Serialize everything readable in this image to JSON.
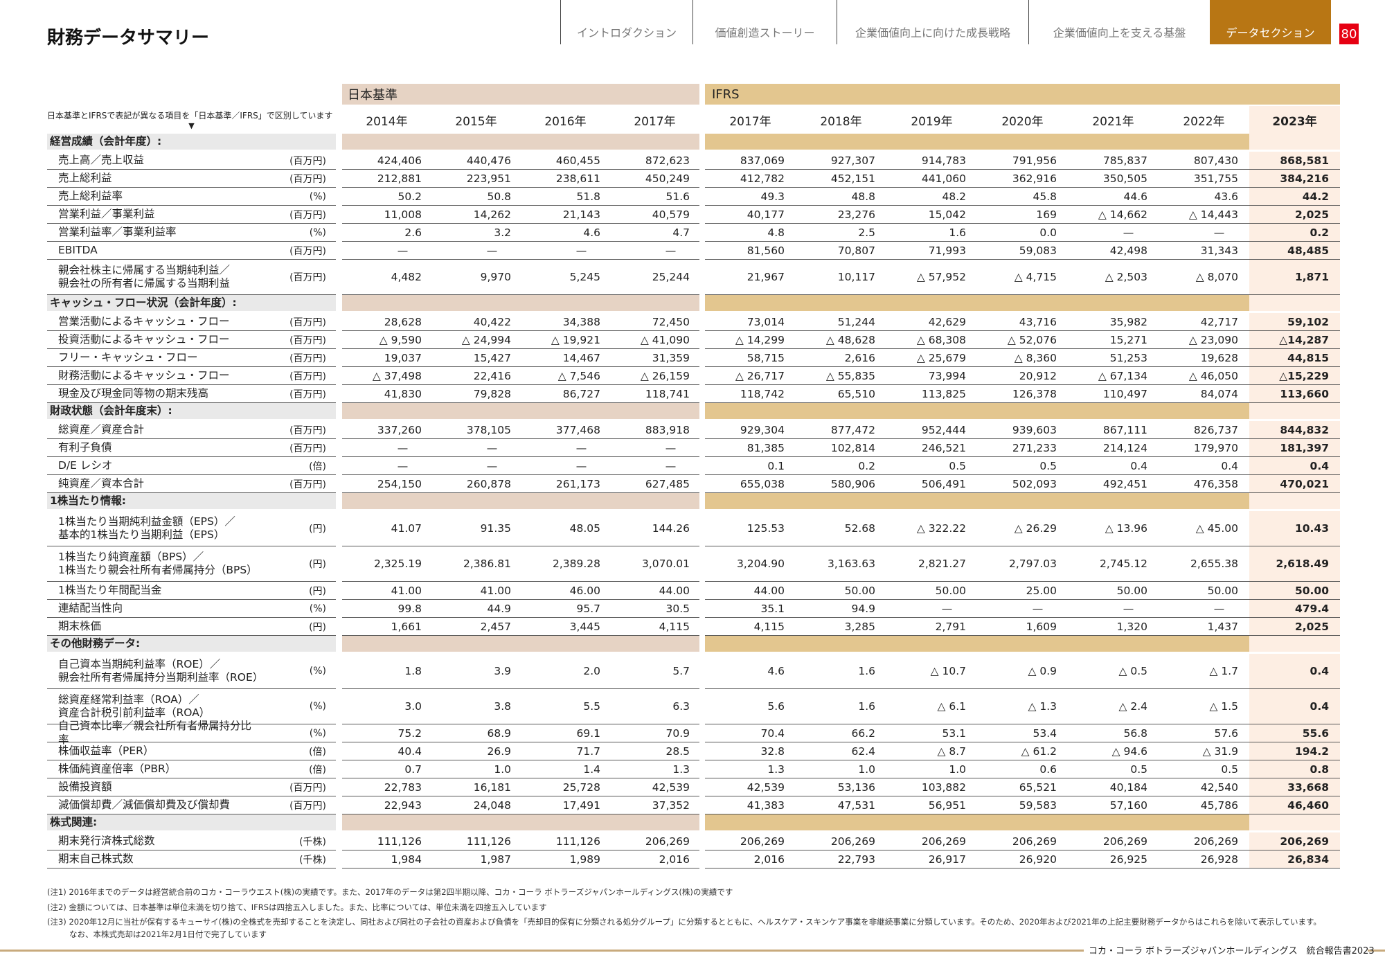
{
  "title": "財務データサマリー",
  "nav": [
    {
      "label": "イントロダクション",
      "active": false
    },
    {
      "label": "価値創造ストーリー",
      "active": false
    },
    {
      "label": "企業価値向上に向けた成長戦略",
      "active": false
    },
    {
      "label": "企業価値向上を支える基盤",
      "active": false
    },
    {
      "label": "データセクション",
      "active": true
    }
  ],
  "page_number": "80",
  "colors": {
    "accent": "#b87614",
    "jp_band": "#e6d3c4",
    "ifrs_band": "#e3c68f",
    "highlight": "#fdeee3",
    "page_badge": "#e60012"
  },
  "table": {
    "note": "日本基準とIFRSで表記が異なる項目を「日本基準／IFRS」で区別しています",
    "note_arrow": "▼",
    "jp_header": "日本基準",
    "ifrs_header": "IFRS",
    "jp_years": [
      "2014年",
      "2015年",
      "2016年",
      "2017年"
    ],
    "ifrs_years": [
      "2017年",
      "2018年",
      "2019年",
      "2020年",
      "2021年",
      "2022年",
      "2023年"
    ],
    "sections": [
      {
        "title": "経営成績（会計年度）:",
        "rows": [
          {
            "label": "売上高／売上収益",
            "unit": "(百万円)",
            "jp": [
              "424,406",
              "440,476",
              "460,455",
              "872,623"
            ],
            "ifrs": [
              "837,069",
              "927,307",
              "914,783",
              "791,956",
              "785,837",
              "807,430",
              "868,581"
            ]
          },
          {
            "label": "売上総利益",
            "unit": "(百万円)",
            "jp": [
              "212,881",
              "223,951",
              "238,611",
              "450,249"
            ],
            "ifrs": [
              "412,782",
              "452,151",
              "441,060",
              "362,916",
              "350,505",
              "351,755",
              "384,216"
            ]
          },
          {
            "label": "売上総利益率",
            "unit": "(%)",
            "jp": [
              "50.2",
              "50.8",
              "51.8",
              "51.6"
            ],
            "ifrs": [
              "49.3",
              "48.8",
              "48.2",
              "45.8",
              "44.6",
              "43.6",
              "44.2"
            ]
          },
          {
            "label": "営業利益／事業利益",
            "unit": "(百万円)",
            "jp": [
              "11,008",
              "14,262",
              "21,143",
              "40,579"
            ],
            "ifrs": [
              "40,177",
              "23,276",
              "15,042",
              "169",
              "△ 14,662",
              "△ 14,443",
              "2,025"
            ]
          },
          {
            "label": "営業利益率／事業利益率",
            "unit": "(%)",
            "jp": [
              "2.6",
              "3.2",
              "4.6",
              "4.7"
            ],
            "ifrs": [
              "4.8",
              "2.5",
              "1.6",
              "0.0",
              "—",
              "—",
              "0.2"
            ]
          },
          {
            "label": "EBITDA",
            "unit": "(百万円)",
            "jp": [
              "—",
              "—",
              "—",
              "—"
            ],
            "ifrs": [
              "81,560",
              "70,807",
              "71,993",
              "59,083",
              "42,498",
              "31,343",
              "48,485"
            ]
          },
          {
            "label": "親会社株主に帰属する当期純利益／",
            "label2": "親会社の所有者に帰属する当期利益",
            "unit": "(百万円)",
            "jp": [
              "4,482",
              "9,970",
              "5,245",
              "25,244"
            ],
            "ifrs": [
              "21,967",
              "10,117",
              "△ 57,952",
              "△ 4,715",
              "△ 2,503",
              "△ 8,070",
              "1,871"
            ]
          }
        ]
      },
      {
        "title": "キャッシュ・フロー状況（会計年度）:",
        "rows": [
          {
            "label": "営業活動によるキャッシュ・フロー",
            "unit": "(百万円)",
            "jp": [
              "28,628",
              "40,422",
              "34,388",
              "72,450"
            ],
            "ifrs": [
              "73,014",
              "51,244",
              "42,629",
              "43,716",
              "35,982",
              "42,717",
              "59,102"
            ]
          },
          {
            "label": "投資活動によるキャッシュ・フロー",
            "unit": "(百万円)",
            "jp": [
              "△ 9,590",
              "△ 24,994",
              "△ 19,921",
              "△ 41,090"
            ],
            "ifrs": [
              "△ 14,299",
              "△ 48,628",
              "△ 68,308",
              "△ 52,076",
              "15,271",
              "△ 23,090",
              "△14,287"
            ]
          },
          {
            "label": "フリー・キャッシュ・フロー",
            "unit": "(百万円)",
            "jp": [
              "19,037",
              "15,427",
              "14,467",
              "31,359"
            ],
            "ifrs": [
              "58,715",
              "2,616",
              "△ 25,679",
              "△ 8,360",
              "51,253",
              "19,628",
              "44,815"
            ]
          },
          {
            "label": "財務活動によるキャッシュ・フロー",
            "unit": "(百万円)",
            "jp": [
              "△ 37,498",
              "22,416",
              "△ 7,546",
              "△ 26,159"
            ],
            "ifrs": [
              "△ 26,717",
              "△ 55,835",
              "73,994",
              "20,912",
              "△ 67,134",
              "△ 46,050",
              "△15,229"
            ]
          },
          {
            "label": "現金及び現金同等物の期末残高",
            "unit": "(百万円)",
            "jp": [
              "41,830",
              "79,828",
              "86,727",
              "118,741"
            ],
            "ifrs": [
              "118,742",
              "65,510",
              "113,825",
              "126,378",
              "110,497",
              "84,074",
              "113,660"
            ]
          }
        ]
      },
      {
        "title": "財政状態（会計年度末）:",
        "rows": [
          {
            "label": "総資産／資産合計",
            "unit": "(百万円)",
            "jp": [
              "337,260",
              "378,105",
              "377,468",
              "883,918"
            ],
            "ifrs": [
              "929,304",
              "877,472",
              "952,444",
              "939,603",
              "867,111",
              "826,737",
              "844,832"
            ]
          },
          {
            "label": "有利子負債",
            "unit": "(百万円)",
            "jp": [
              "—",
              "—",
              "—",
              "—"
            ],
            "ifrs": [
              "81,385",
              "102,814",
              "246,521",
              "271,233",
              "214,124",
              "179,970",
              "181,397"
            ]
          },
          {
            "label": "D/E レシオ",
            "unit": "(倍)",
            "jp": [
              "—",
              "—",
              "—",
              "—"
            ],
            "ifrs": [
              "0.1",
              "0.2",
              "0.5",
              "0.5",
              "0.4",
              "0.4",
              "0.4"
            ]
          },
          {
            "label": "純資産／資本合計",
            "unit": "(百万円)",
            "jp": [
              "254,150",
              "260,878",
              "261,173",
              "627,485"
            ],
            "ifrs": [
              "655,038",
              "580,906",
              "506,491",
              "502,093",
              "492,451",
              "476,358",
              "470,021"
            ]
          }
        ]
      },
      {
        "title": "1株当たり情報:",
        "rows": [
          {
            "label": "1株当たり当期純利益金額（EPS）／",
            "label2": "基本的1株当たり当期利益（EPS）",
            "unit": "(円)",
            "jp": [
              "41.07",
              "91.35",
              "48.05",
              "144.26"
            ],
            "ifrs": [
              "125.53",
              "52.68",
              "△ 322.22",
              "△ 26.29",
              "△ 13.96",
              "△ 45.00",
              "10.43"
            ]
          },
          {
            "label": "1株当たり純資産額（BPS）／",
            "label2": "1株当たり親会社所有者帰属持分（BPS）",
            "unit": "(円)",
            "jp": [
              "2,325.19",
              "2,386.81",
              "2,389.28",
              "3,070.01"
            ],
            "ifrs": [
              "3,204.90",
              "3,163.63",
              "2,821.27",
              "2,797.03",
              "2,745.12",
              "2,655.38",
              "2,618.49"
            ]
          },
          {
            "label": "1株当たり年間配当金",
            "unit": "(円)",
            "jp": [
              "41.00",
              "41.00",
              "46.00",
              "44.00"
            ],
            "ifrs": [
              "44.00",
              "50.00",
              "50.00",
              "25.00",
              "50.00",
              "50.00",
              "50.00"
            ]
          },
          {
            "label": "連結配当性向",
            "unit": "(%)",
            "jp": [
              "99.8",
              "44.9",
              "95.7",
              "30.5"
            ],
            "ifrs": [
              "35.1",
              "94.9",
              "—",
              "—",
              "—",
              "—",
              "479.4"
            ]
          },
          {
            "label": "期末株価",
            "unit": "(円)",
            "jp": [
              "1,661",
              "2,457",
              "3,445",
              "4,115"
            ],
            "ifrs": [
              "4,115",
              "3,285",
              "2,791",
              "1,609",
              "1,320",
              "1,437",
              "2,025"
            ]
          }
        ]
      },
      {
        "title": "その他財務データ:",
        "rows": [
          {
            "label": "自己資本当期純利益率（ROE）／",
            "label2": "親会社所有者帰属持分当期利益率（ROE）",
            "unit": "(%)",
            "jp": [
              "1.8",
              "3.9",
              "2.0",
              "5.7"
            ],
            "ifrs": [
              "4.6",
              "1.6",
              "△ 10.7",
              "△ 0.9",
              "△ 0.5",
              "△ 1.7",
              "0.4"
            ]
          },
          {
            "label": "総資産経常利益率（ROA）／",
            "label2": "資産合計税引前利益率（ROA）",
            "unit": "(%)",
            "jp": [
              "3.0",
              "3.8",
              "5.5",
              "6.3"
            ],
            "ifrs": [
              "5.6",
              "1.6",
              "△ 6.1",
              "△ 1.3",
              "△ 2.4",
              "△ 1.5",
              "0.4"
            ]
          },
          {
            "label": "自己資本比率／親会社所有者帰属持分比率",
            "unit": "(%)",
            "jp": [
              "75.2",
              "68.9",
              "69.1",
              "70.9"
            ],
            "ifrs": [
              "70.4",
              "66.2",
              "53.1",
              "53.4",
              "56.8",
              "57.6",
              "55.6"
            ]
          },
          {
            "label": "株価収益率（PER）",
            "unit": "(倍)",
            "jp": [
              "40.4",
              "26.9",
              "71.7",
              "28.5"
            ],
            "ifrs": [
              "32.8",
              "62.4",
              "△ 8.7",
              "△ 61.2",
              "△ 94.6",
              "△ 31.9",
              "194.2"
            ]
          },
          {
            "label": "株価純資産倍率（PBR）",
            "unit": "(倍)",
            "jp": [
              "0.7",
              "1.0",
              "1.4",
              "1.3"
            ],
            "ifrs": [
              "1.3",
              "1.0",
              "1.0",
              "0.6",
              "0.5",
              "0.5",
              "0.8"
            ]
          },
          {
            "label": "設備投資額",
            "unit": "(百万円)",
            "jp": [
              "22,783",
              "16,181",
              "25,728",
              "42,539"
            ],
            "ifrs": [
              "42,539",
              "53,136",
              "103,882",
              "65,521",
              "40,184",
              "42,540",
              "33,668"
            ]
          },
          {
            "label": "減価償却費／減価償却費及び償却費",
            "unit": "(百万円)",
            "jp": [
              "22,943",
              "24,048",
              "17,491",
              "37,352"
            ],
            "ifrs": [
              "41,383",
              "47,531",
              "56,951",
              "59,583",
              "57,160",
              "45,786",
              "46,460"
            ]
          }
        ]
      },
      {
        "title": "株式関連:",
        "rows": [
          {
            "label": "期末発行済株式総数",
            "unit": "(千株)",
            "jp": [
              "111,126",
              "111,126",
              "111,126",
              "206,269"
            ],
            "ifrs": [
              "206,269",
              "206,269",
              "206,269",
              "206,269",
              "206,269",
              "206,269",
              "206,269"
            ]
          },
          {
            "label": "期末自己株式数",
            "unit": "(千株)",
            "jp": [
              "1,984",
              "1,987",
              "1,989",
              "2,016"
            ],
            "ifrs": [
              "2,016",
              "22,793",
              "26,917",
              "26,920",
              "26,925",
              "26,928",
              "26,834"
            ]
          }
        ]
      }
    ]
  },
  "notes": [
    "(注1) 2016年までのデータは経営統合前のコカ・コーラウエスト(株)の実績です。また、2017年のデータは第2四半期以降、コカ・コーラ ボトラーズジャパンホールディングス(株)の実績です",
    "(注2) 金額については、日本基準は単位未満を切り捨て、IFRSは四捨五入しました。また、比率については、単位未満を四捨五入しています",
    "(注3) 2020年12月に当社が保有するキューサイ(株)の全株式を売却することを決定し、同社および同社の子会社の資産および負債を「売却目的保有に分類される処分グループ」に分類するとともに、ヘルスケア・スキンケア事業を非継続事業に分類しています。そのため、2020年および2021年の上記主要財務データからはこれらを除いて表示しています。",
    "なお、本株式売却は2021年2月1日付で完了しています"
  ],
  "footer": "コカ・コーラ ボトラーズジャパンホールディングス　統合報告書2023"
}
